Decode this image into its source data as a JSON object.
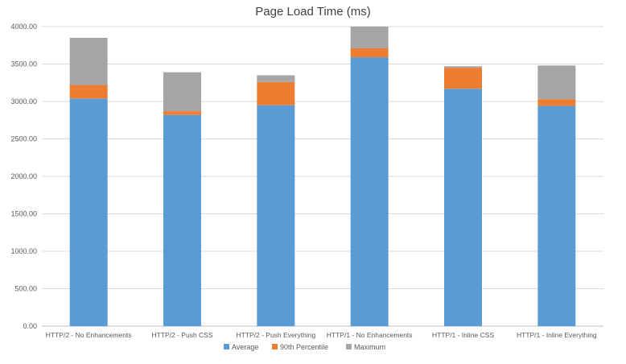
{
  "chart_data": {
    "type": "bar",
    "stacked": true,
    "title": "Page Load Time (ms)",
    "xlabel": "",
    "ylabel": "",
    "ylim": [
      0,
      4000
    ],
    "yticks": [
      "0.00",
      "500.00",
      "1000.00",
      "1500.00",
      "2000.00",
      "2500.00",
      "3000.00",
      "3500.00",
      "4000.00"
    ],
    "grid": true,
    "legend_position": "bottom",
    "categories": [
      "HTTP/2 - No Enhancements",
      "HTTP/2 - Push CSS",
      "HTTP/2 - Push Everything",
      "HTTP/1 - No Enhancements",
      "HTTP/1 - Inline CSS",
      "HTTP/1 - Inline Everything"
    ],
    "series": [
      {
        "name": "Average",
        "color": "#5B9BD5",
        "values": [
          3040,
          2820,
          2950,
          3590,
          3170,
          2940
        ]
      },
      {
        "name": "90th Percentile",
        "color": "#ED7D31",
        "values": [
          180,
          50,
          310,
          120,
          280,
          90
        ]
      },
      {
        "name": "Maximum",
        "color": "#A5A5A5",
        "values": [
          630,
          520,
          90,
          290,
          20,
          450
        ]
      }
    ]
  }
}
